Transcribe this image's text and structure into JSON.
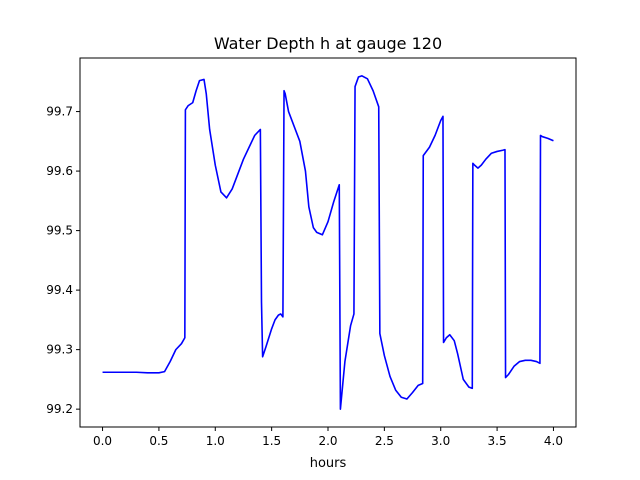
{
  "chart_data": {
    "type": "line",
    "title": "Water Depth h at gauge 120",
    "xlabel": "hours",
    "ylabel": "",
    "xlim": [
      -0.2,
      4.2
    ],
    "ylim": [
      99.17,
      99.79
    ],
    "grid": false,
    "legend": "none",
    "x_ticks": [
      0.0,
      0.5,
      1.0,
      1.5,
      2.0,
      2.5,
      3.0,
      3.5,
      4.0
    ],
    "x_tick_labels": [
      "0.0",
      "0.5",
      "1.0",
      "1.5",
      "2.0",
      "2.5",
      "3.0",
      "3.5",
      "4.0"
    ],
    "y_ticks": [
      99.2,
      99.3,
      99.4,
      99.5,
      99.6,
      99.7
    ],
    "y_tick_labels": [
      "99.2",
      "99.3",
      "99.4",
      "99.5",
      "99.6",
      "99.7"
    ],
    "series": [
      {
        "color": "#0000ff",
        "x": [
          0.0,
          0.1,
          0.2,
          0.3,
          0.4,
          0.5,
          0.55,
          0.6,
          0.65,
          0.7,
          0.73,
          0.735,
          0.76,
          0.8,
          0.83,
          0.86,
          0.9,
          0.92,
          0.95,
          1.0,
          1.05,
          1.1,
          1.15,
          1.2,
          1.25,
          1.3,
          1.35,
          1.4,
          1.41,
          1.42,
          1.45,
          1.5,
          1.53,
          1.56,
          1.58,
          1.6,
          1.61,
          1.62,
          1.65,
          1.7,
          1.75,
          1.8,
          1.83,
          1.87,
          1.9,
          1.95,
          2.0,
          2.05,
          2.1,
          2.11,
          2.15,
          2.2,
          2.23,
          2.24,
          2.27,
          2.3,
          2.35,
          2.4,
          2.45,
          2.46,
          2.5,
          2.55,
          2.6,
          2.65,
          2.7,
          2.75,
          2.8,
          2.84,
          2.845,
          2.9,
          2.95,
          3.0,
          3.02,
          3.025,
          3.05,
          3.08,
          3.12,
          3.15,
          3.2,
          3.25,
          3.28,
          3.285,
          3.3,
          3.33,
          3.36,
          3.4,
          3.45,
          3.5,
          3.55,
          3.57,
          3.575,
          3.6,
          3.65,
          3.7,
          3.75,
          3.8,
          3.85,
          3.88,
          3.885,
          3.9,
          3.95,
          4.0
        ],
        "y": [
          99.262,
          99.262,
          99.262,
          99.262,
          99.261,
          99.261,
          99.263,
          99.28,
          99.3,
          99.31,
          99.32,
          99.703,
          99.71,
          99.715,
          99.735,
          99.752,
          99.754,
          99.73,
          99.67,
          99.61,
          99.565,
          99.555,
          99.57,
          99.595,
          99.62,
          99.64,
          99.66,
          99.67,
          99.38,
          99.288,
          99.305,
          99.335,
          99.35,
          99.358,
          99.36,
          99.355,
          99.735,
          99.73,
          99.7,
          99.675,
          99.65,
          99.6,
          99.54,
          99.505,
          99.497,
          99.493,
          99.515,
          99.548,
          99.577,
          99.2,
          99.28,
          99.34,
          99.36,
          99.742,
          99.758,
          99.76,
          99.755,
          99.735,
          99.708,
          99.327,
          99.29,
          99.255,
          99.232,
          99.22,
          99.217,
          99.228,
          99.24,
          99.243,
          99.626,
          99.64,
          99.66,
          99.685,
          99.692,
          99.312,
          99.32,
          99.325,
          99.315,
          99.293,
          99.25,
          99.237,
          99.235,
          99.613,
          99.61,
          99.605,
          99.61,
          99.62,
          99.63,
          99.633,
          99.635,
          99.636,
          99.253,
          99.258,
          99.272,
          99.28,
          99.282,
          99.282,
          99.28,
          99.277,
          99.66,
          99.658,
          99.655,
          99.651
        ]
      }
    ]
  }
}
